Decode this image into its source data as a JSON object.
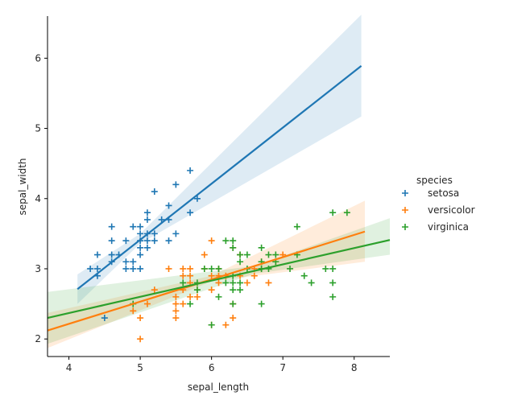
{
  "chart_data": {
    "type": "scatter",
    "title": "",
    "xlabel": "sepal_length",
    "ylabel": "sepal_width",
    "xlim": [
      3.7,
      8.5
    ],
    "ylim": [
      1.75,
      6.6
    ],
    "xticks": [
      4,
      5,
      6,
      7,
      8
    ],
    "yticks": [
      2,
      3,
      4,
      5,
      6
    ],
    "marker": "+",
    "regression": true,
    "confidence_band": true,
    "grid": false,
    "legend": {
      "title": "species",
      "placement": "right"
    },
    "series": [
      {
        "name": "setosa",
        "color": "#1f77b4",
        "points": [
          [
            4.3,
            3.0
          ],
          [
            4.4,
            2.9
          ],
          [
            4.4,
            3.0
          ],
          [
            4.4,
            3.2
          ],
          [
            4.5,
            2.3
          ],
          [
            4.6,
            3.1
          ],
          [
            4.6,
            3.2
          ],
          [
            4.6,
            3.4
          ],
          [
            4.6,
            3.6
          ],
          [
            4.7,
            3.2
          ],
          [
            4.8,
            3.0
          ],
          [
            4.8,
            3.1
          ],
          [
            4.8,
            3.4
          ],
          [
            4.9,
            3.0
          ],
          [
            4.9,
            3.1
          ],
          [
            4.9,
            3.6
          ],
          [
            5.0,
            3.0
          ],
          [
            5.0,
            3.2
          ],
          [
            5.0,
            3.3
          ],
          [
            5.0,
            3.4
          ],
          [
            5.0,
            3.5
          ],
          [
            5.0,
            3.6
          ],
          [
            5.1,
            3.3
          ],
          [
            5.1,
            3.4
          ],
          [
            5.1,
            3.5
          ],
          [
            5.1,
            3.7
          ],
          [
            5.1,
            3.8
          ],
          [
            5.2,
            3.4
          ],
          [
            5.2,
            3.5
          ],
          [
            5.2,
            4.1
          ],
          [
            5.3,
            3.7
          ],
          [
            5.4,
            3.4
          ],
          [
            5.4,
            3.7
          ],
          [
            5.4,
            3.9
          ],
          [
            5.5,
            3.5
          ],
          [
            5.5,
            4.2
          ],
          [
            5.7,
            3.8
          ],
          [
            5.7,
            4.4
          ],
          [
            5.8,
            4.0
          ]
        ]
      },
      {
        "name": "versicolor",
        "color": "#ff7f0e",
        "points": [
          [
            4.9,
            2.4
          ],
          [
            5.0,
            2.0
          ],
          [
            5.0,
            2.3
          ],
          [
            5.1,
            2.5
          ],
          [
            5.2,
            2.7
          ],
          [
            5.4,
            3.0
          ],
          [
            5.5,
            2.3
          ],
          [
            5.5,
            2.4
          ],
          [
            5.5,
            2.5
          ],
          [
            5.5,
            2.6
          ],
          [
            5.6,
            2.5
          ],
          [
            5.6,
            2.7
          ],
          [
            5.6,
            2.9
          ],
          [
            5.6,
            3.0
          ],
          [
            5.7,
            2.6
          ],
          [
            5.7,
            2.8
          ],
          [
            5.7,
            2.9
          ],
          [
            5.7,
            3.0
          ],
          [
            5.8,
            2.6
          ],
          [
            5.8,
            2.7
          ],
          [
            5.9,
            3.0
          ],
          [
            5.9,
            3.2
          ],
          [
            6.0,
            2.2
          ],
          [
            6.0,
            2.7
          ],
          [
            6.0,
            2.9
          ],
          [
            6.0,
            3.4
          ],
          [
            6.1,
            2.8
          ],
          [
            6.1,
            2.9
          ],
          [
            6.1,
            3.0
          ],
          [
            6.2,
            2.2
          ],
          [
            6.2,
            2.9
          ],
          [
            6.3,
            2.3
          ],
          [
            6.3,
            2.5
          ],
          [
            6.3,
            3.3
          ],
          [
            6.4,
            2.9
          ],
          [
            6.4,
            3.2
          ],
          [
            6.5,
            2.8
          ],
          [
            6.6,
            2.9
          ],
          [
            6.6,
            3.0
          ],
          [
            6.7,
            3.0
          ],
          [
            6.7,
            3.1
          ],
          [
            6.8,
            2.8
          ],
          [
            6.9,
            3.1
          ],
          [
            7.0,
            3.2
          ]
        ]
      },
      {
        "name": "virginica",
        "color": "#2ca02c",
        "points": [
          [
            4.9,
            2.5
          ],
          [
            5.6,
            2.8
          ],
          [
            5.7,
            2.5
          ],
          [
            5.8,
            2.7
          ],
          [
            5.8,
            2.8
          ],
          [
            5.9,
            3.0
          ],
          [
            6.0,
            2.2
          ],
          [
            6.0,
            3.0
          ],
          [
            6.1,
            2.6
          ],
          [
            6.1,
            3.0
          ],
          [
            6.2,
            2.8
          ],
          [
            6.2,
            3.4
          ],
          [
            6.3,
            2.5
          ],
          [
            6.3,
            2.7
          ],
          [
            6.3,
            2.8
          ],
          [
            6.3,
            2.9
          ],
          [
            6.3,
            3.3
          ],
          [
            6.3,
            3.4
          ],
          [
            6.4,
            2.7
          ],
          [
            6.4,
            2.8
          ],
          [
            6.4,
            3.1
          ],
          [
            6.4,
            3.2
          ],
          [
            6.5,
            3.0
          ],
          [
            6.5,
            3.2
          ],
          [
            6.7,
            2.5
          ],
          [
            6.7,
            3.0
          ],
          [
            6.7,
            3.1
          ],
          [
            6.7,
            3.3
          ],
          [
            6.8,
            3.0
          ],
          [
            6.8,
            3.2
          ],
          [
            6.9,
            3.1
          ],
          [
            6.9,
            3.2
          ],
          [
            7.1,
            3.0
          ],
          [
            7.2,
            3.2
          ],
          [
            7.2,
            3.6
          ],
          [
            7.3,
            2.9
          ],
          [
            7.4,
            2.8
          ],
          [
            7.6,
            3.0
          ],
          [
            7.7,
            2.6
          ],
          [
            7.7,
            2.8
          ],
          [
            7.7,
            3.0
          ],
          [
            7.7,
            3.8
          ],
          [
            7.9,
            3.8
          ]
        ]
      }
    ],
    "fits": [
      {
        "series": "setosa",
        "x": [
          4.12,
          8.1
        ],
        "y": [
          2.71,
          5.89
        ],
        "ci_low": [
          2.5,
          5.17
        ],
        "ci_high": [
          2.92,
          6.62
        ],
        "x_mid": 5.0,
        "ci_mid": [
          3.36,
          3.5
        ]
      },
      {
        "series": "versicolor",
        "x": [
          3.7,
          8.15
        ],
        "y": [
          2.12,
          3.53
        ],
        "ci_low": [
          1.87,
          3.1
        ],
        "ci_high": [
          2.37,
          3.97
        ],
        "x_mid": 6.0,
        "ci_mid": [
          2.82,
          2.9
        ]
      },
      {
        "series": "virginica",
        "x": [
          3.7,
          8.5
        ],
        "y": [
          2.3,
          3.41
        ],
        "ci_low": [
          1.93,
          3.2
        ],
        "ci_high": [
          2.67,
          3.72
        ],
        "x_mid": 6.6,
        "ci_mid": [
          2.93,
          3.04
        ]
      }
    ]
  }
}
